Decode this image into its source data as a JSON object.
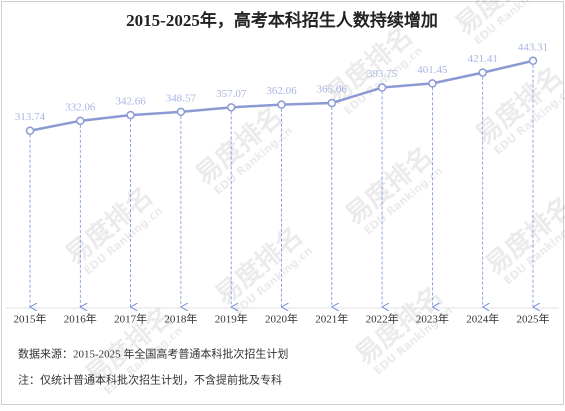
{
  "chart_data": {
    "type": "line",
    "title": "2015-2025年，高考本科招生人数持续增加",
    "categories": [
      "2015年",
      "2016年",
      "2017年",
      "2018年",
      "2019年",
      "2020年",
      "2021年",
      "2022年",
      "2023年",
      "2024年",
      "2025年"
    ],
    "series": [
      {
        "name": "本科招生人数",
        "color": "#8c9ad4",
        "values": [
          313.74,
          332.06,
          342.66,
          348.57,
          357.07,
          362.06,
          365.06,
          393.75,
          401.45,
          421.41,
          443.31
        ]
      }
    ],
    "ylim": [
      0,
      480
    ],
    "label_color": "#a9b5e3",
    "drop_line_color": "#6f8fdc",
    "source": "数据来源：2015-2025 年全国高考普通本科批次招生计划",
    "note": "注：仅统计普通本科批次招生计划，不含提前批及专科",
    "watermark": "易度排名",
    "watermark_sub": "EDU Ranking.cn"
  }
}
